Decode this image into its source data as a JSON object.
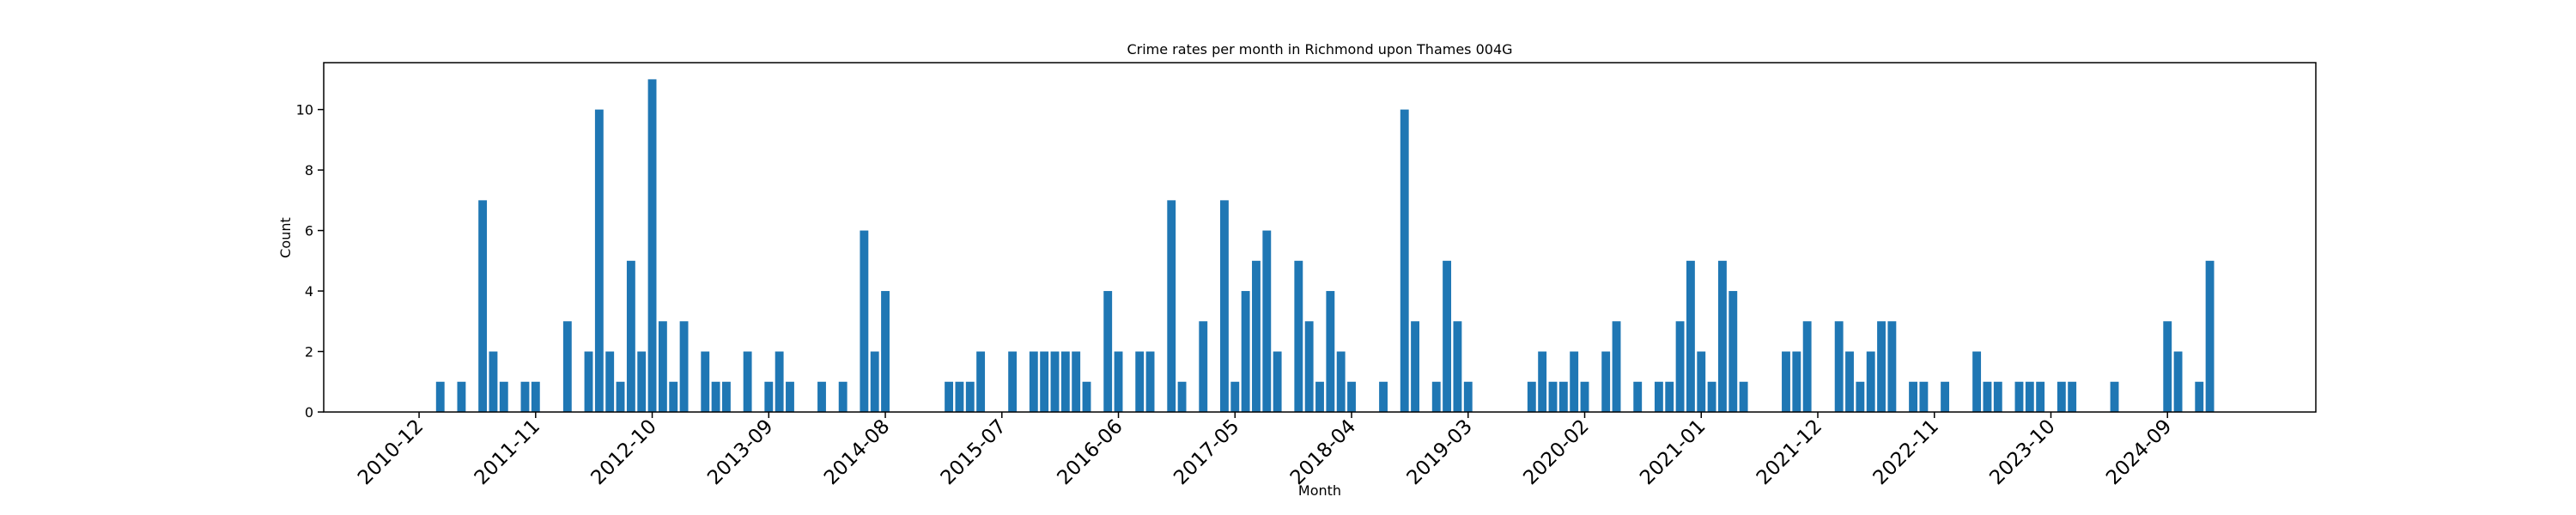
{
  "chart_data": {
    "type": "bar",
    "title": "Crime rates per month in Richmond upon Thames 004G",
    "x_label": "Month",
    "y_label": "Count",
    "color": "#1f77b4",
    "x": [
      "2011-02",
      "2011-04",
      "2011-06",
      "2011-07",
      "2011-08",
      "2011-10",
      "2011-11",
      "2012-02",
      "2012-04",
      "2012-05",
      "2012-06",
      "2012-07",
      "2012-08",
      "2012-09",
      "2012-10",
      "2012-11",
      "2012-12",
      "2013-01",
      "2013-03",
      "2013-04",
      "2013-05",
      "2013-07",
      "2013-09",
      "2013-10",
      "2013-11",
      "2014-02",
      "2014-04",
      "2014-06",
      "2014-07",
      "2014-08",
      "2015-02",
      "2015-03",
      "2015-04",
      "2015-05",
      "2015-08",
      "2015-10",
      "2015-11",
      "2015-12",
      "2016-01",
      "2016-02",
      "2016-03",
      "2016-05",
      "2016-06",
      "2016-08",
      "2016-09",
      "2016-11",
      "2016-12",
      "2017-02",
      "2017-04",
      "2017-05",
      "2017-06",
      "2017-07",
      "2017-08",
      "2017-09",
      "2017-11",
      "2017-12",
      "2018-01",
      "2018-02",
      "2018-03",
      "2018-04",
      "2018-07",
      "2018-09",
      "2018-10",
      "2018-12",
      "2019-01",
      "2019-02",
      "2019-03",
      "2019-09",
      "2019-10",
      "2019-11",
      "2019-12",
      "2020-01",
      "2020-02",
      "2020-04",
      "2020-05",
      "2020-07",
      "2020-09",
      "2020-10",
      "2020-11",
      "2020-12",
      "2021-01",
      "2021-02",
      "2021-03",
      "2021-04",
      "2021-05",
      "2021-09",
      "2021-10",
      "2021-11",
      "2022-02",
      "2022-03",
      "2022-04",
      "2022-05",
      "2022-06",
      "2022-07",
      "2022-09",
      "2022-10",
      "2022-12",
      "2023-03",
      "2023-04",
      "2023-05",
      "2023-07",
      "2023-08",
      "2023-09",
      "2023-11",
      "2023-12",
      "2024-04",
      "2024-09",
      "2024-10",
      "2024-12",
      "2025-01"
    ],
    "values": [
      1,
      1,
      7,
      2,
      1,
      1,
      1,
      3,
      2,
      10,
      2,
      1,
      5,
      2,
      11,
      3,
      1,
      3,
      2,
      1,
      1,
      2,
      1,
      2,
      1,
      1,
      1,
      6,
      2,
      4,
      1,
      1,
      1,
      2,
      2,
      2,
      2,
      2,
      2,
      2,
      1,
      4,
      2,
      2,
      2,
      7,
      1,
      3,
      7,
      1,
      4,
      5,
      6,
      2,
      5,
      3,
      1,
      4,
      2,
      1,
      1,
      10,
      3,
      1,
      5,
      3,
      1,
      1,
      2,
      1,
      1,
      2,
      1,
      2,
      3,
      1,
      1,
      1,
      3,
      5,
      2,
      1,
      5,
      4,
      1,
      2,
      2,
      3,
      3,
      2,
      1,
      2,
      3,
      3,
      1,
      1,
      1,
      2,
      1,
      1,
      1,
      1,
      1,
      1,
      1,
      1,
      3,
      2,
      1,
      5
    ],
    "xlim": [
      "2010-03",
      "2025-11"
    ],
    "xticks": [
      "2010-12",
      "2011-11",
      "2012-10",
      "2013-09",
      "2014-08",
      "2015-07",
      "2016-06",
      "2017-05",
      "2018-04",
      "2019-03",
      "2020-02",
      "2021-01",
      "2021-12",
      "2022-11",
      "2023-10",
      "2024-09"
    ],
    "ylim": [
      0,
      11.55
    ],
    "yticks": [
      0,
      2,
      4,
      6,
      8,
      10
    ]
  }
}
